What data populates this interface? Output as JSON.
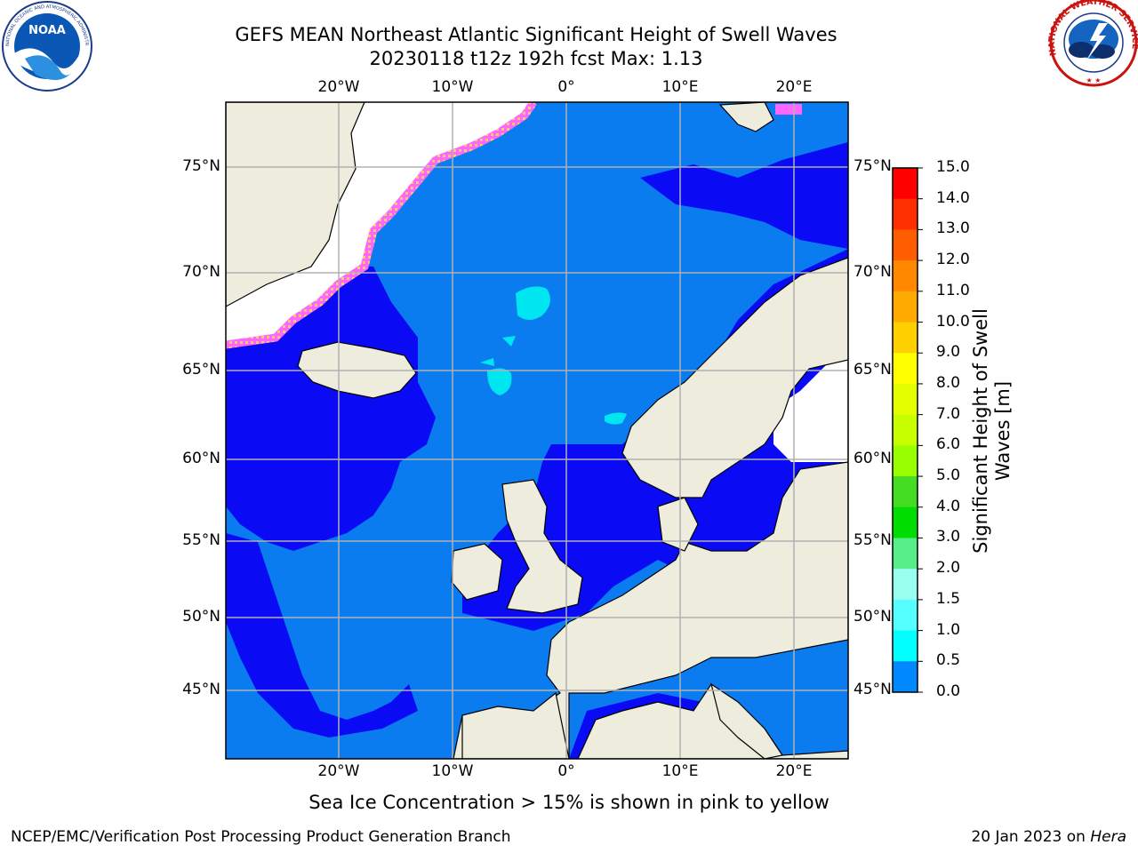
{
  "title_line1": "GEFS MEAN Northeast Atlantic Significant Height of Swell Waves",
  "title_line2": "20230118 t12z 192h fcst   Max: 1.13",
  "logos": {
    "noaa": {
      "icon": "noaa-logo",
      "text": "NOAA",
      "ring_text": "NATIONAL OCEANIC AND ATMOSPHERIC ADMINISTRATION · U.S. DEPARTMENT OF COMMERCE"
    },
    "nws": {
      "icon": "nws-logo",
      "ring_text": "NATIONAL WEATHER SERVICE"
    }
  },
  "map": {
    "x_ticks_top": [
      "20°W",
      "10°W",
      "0°",
      "10°E",
      "20°E"
    ],
    "x_ticks_bottom": [
      "20°W",
      "10°W",
      "0°",
      "10°E",
      "20°E"
    ],
    "y_ticks_left": [
      "75°N",
      "70°N",
      "65°N",
      "60°N",
      "55°N",
      "50°N",
      "45°N"
    ],
    "y_ticks_right": [
      "75°N",
      "70°N",
      "65°N",
      "60°N",
      "55°N",
      "50°N",
      "45°N"
    ],
    "colors": {
      "land": "#eeecdc",
      "ice_free_white": "#ffffff",
      "grid": "#b0b0b0"
    }
  },
  "colorbar": {
    "label": "Significant Height of Swell Waves [m]",
    "ticks": [
      "15.0",
      "14.0",
      "13.0",
      "12.0",
      "11.0",
      "10.0",
      "9.0",
      "8.0",
      "7.0",
      "6.0",
      "5.0",
      "4.0",
      "3.0",
      "2.0",
      "1.5",
      "1.0",
      "0.5",
      "0.0"
    ],
    "colors": [
      "#ff0000",
      "#ff2f00",
      "#ff5e00",
      "#ff8800",
      "#ffaa00",
      "#ffd000",
      "#ffff00",
      "#e6ff00",
      "#c8ff00",
      "#99ff00",
      "#44dd22",
      "#00dd00",
      "#55ee88",
      "#99ffee",
      "#55ffff",
      "#00ffff",
      "#0088ff",
      "#0000ff"
    ]
  },
  "footer_note": "Sea Ice Concentration > 15% is shown in pink to yellow",
  "credit": "NCEP/EMC/Verification Post Processing Product Generation Branch",
  "date_text": "20 Jan 2023 on ",
  "machine": "Hera"
}
